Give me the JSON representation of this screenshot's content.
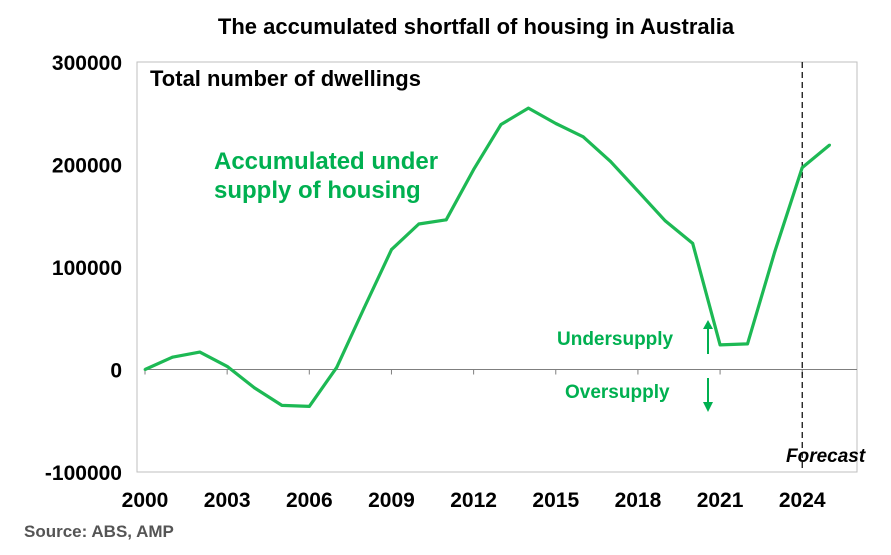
{
  "chart_data": {
    "type": "line",
    "title": "The accumulated shortfall of housing in Australia",
    "ylabel": "Total number of dwellings",
    "xlabel": "",
    "xlim": [
      2000,
      2026
    ],
    "ylim": [
      -100000,
      300000
    ],
    "yticks": [
      {
        "value": -100000,
        "label": "-100000"
      },
      {
        "value": 0,
        "label": "0"
      },
      {
        "value": 100000,
        "label": "100000"
      },
      {
        "value": 200000,
        "label": "200000"
      },
      {
        "value": 300000,
        "label": "300000"
      }
    ],
    "xticks": [
      {
        "value": 2000,
        "label": "2000"
      },
      {
        "value": 2003,
        "label": "2003"
      },
      {
        "value": 2006,
        "label": "2006"
      },
      {
        "value": 2009,
        "label": "2009"
      },
      {
        "value": 2012,
        "label": "2012"
      },
      {
        "value": 2015,
        "label": "2015"
      },
      {
        "value": 2018,
        "label": "2018"
      },
      {
        "value": 2021,
        "label": "2021"
      },
      {
        "value": 2024,
        "label": "2024"
      }
    ],
    "series": [
      {
        "name": "Accumulated under supply of housing",
        "color": "#1db954",
        "x": [
          2000,
          2001,
          2002,
          2003,
          2004,
          2005,
          2006,
          2007,
          2008,
          2009,
          2010,
          2011,
          2012,
          2013,
          2014,
          2015,
          2016,
          2017,
          2018,
          2019,
          2020,
          2021,
          2022,
          2023,
          2024,
          2025
        ],
        "values": [
          0,
          12000,
          17000,
          3000,
          -18000,
          -35000,
          -36000,
          2000,
          60000,
          117000,
          142000,
          146000,
          195000,
          239000,
          255000,
          240000,
          227000,
          203000,
          174000,
          145000,
          123000,
          24000,
          25000,
          115000,
          197000,
          219000
        ]
      }
    ],
    "forecast_start": 2024,
    "annotations": {
      "series_label_line1": "Accumulated under",
      "series_label_line2": "supply of housing",
      "undersupply": "Undersupply",
      "oversupply": "Oversupply",
      "forecast": "Forecast"
    },
    "colors": {
      "line": "#1db954",
      "text_green": "#00b050",
      "axis": "#7f7f7f",
      "box": "#bfbfbf"
    },
    "grid": false,
    "legend": "none"
  },
  "source": "Source: ABS, AMP"
}
